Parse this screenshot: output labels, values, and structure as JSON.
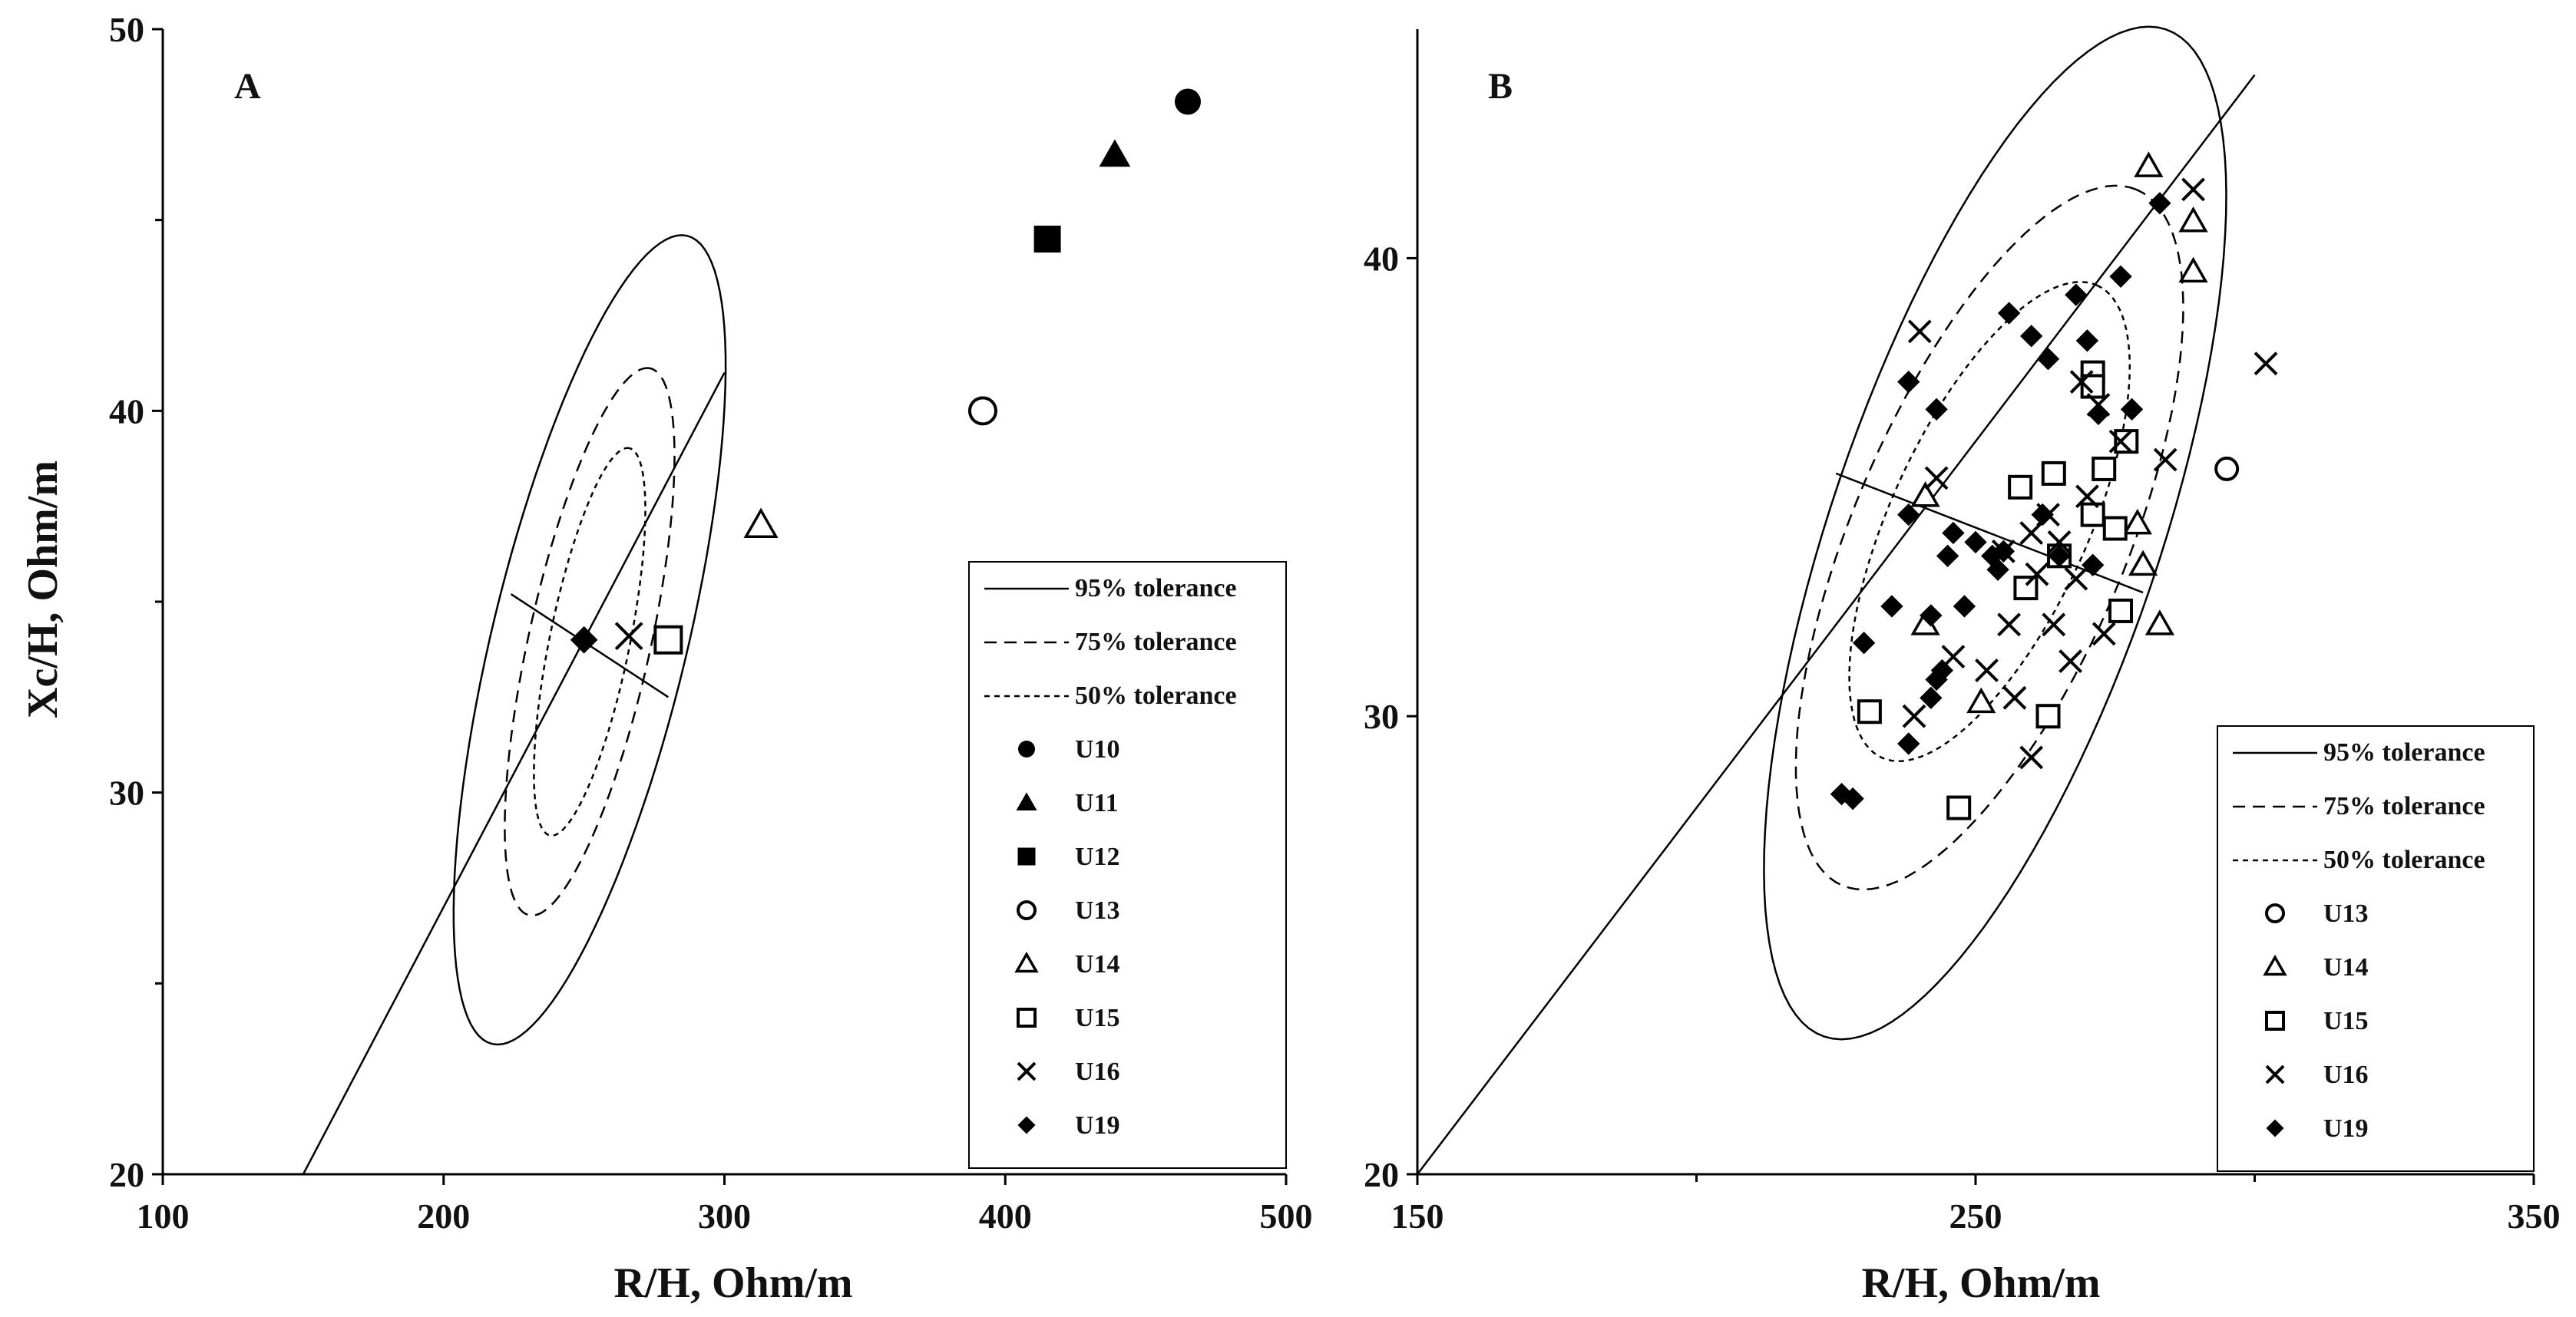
{
  "chart_data": [
    {
      "type": "scatter",
      "panel_label": "A",
      "xlabel": "R/H, Ohm/m",
      "ylabel": "Xc/H, Ohm/m",
      "xlim": [
        100,
        500
      ],
      "ylim": [
        20,
        50
      ],
      "x_ticks": [
        100,
        200,
        300,
        400,
        500
      ],
      "y_ticks": [
        20,
        30,
        40,
        50
      ],
      "legend_position": "bottom-right",
      "ellipses": [
        {
          "name": "95% tolerance",
          "style": "solid",
          "center": [
            252,
            34
          ],
          "x_extent": [
            196,
            308
          ],
          "y_extent": [
            23.8,
            44.2
          ],
          "axis_line": [
            [
              150,
              20
            ],
            [
              300,
              41
            ]
          ],
          "minor_axis": [
            [
              224,
              35.2
            ],
            [
              280,
              32.5
            ]
          ]
        },
        {
          "name": "75% tolerance",
          "style": "dashed",
          "center": [
            252,
            34
          ],
          "x_extent": [
            217,
            287
          ],
          "y_extent": [
            27,
            40.9
          ]
        },
        {
          "name": "50% tolerance",
          "style": "dotted",
          "center": [
            252,
            34
          ],
          "x_extent": [
            229,
            275
          ],
          "y_extent": [
            29,
            38.9
          ]
        }
      ],
      "series": [
        {
          "name": "U10",
          "marker": "circle-filled",
          "points": [
            [
              465,
              48.1
            ]
          ]
        },
        {
          "name": "U11",
          "marker": "triangle-filled",
          "points": [
            [
              439,
              46.7
            ]
          ]
        },
        {
          "name": "U12",
          "marker": "square-filled",
          "points": [
            [
              415,
              44.5
            ]
          ]
        },
        {
          "name": "U13",
          "marker": "circle-open",
          "points": [
            [
              392,
              40
            ]
          ]
        },
        {
          "name": "U14",
          "marker": "triangle-open",
          "points": [
            [
              313,
              37
            ]
          ]
        },
        {
          "name": "U15",
          "marker": "square-open",
          "points": [
            [
              280,
              34
            ]
          ]
        },
        {
          "name": "U16",
          "marker": "x",
          "points": [
            [
              266,
              34.1
            ]
          ]
        },
        {
          "name": "U19",
          "marker": "diamond-filled",
          "points": [
            [
              250,
              34
            ]
          ]
        }
      ]
    },
    {
      "type": "scatter",
      "panel_label": "B",
      "xlabel": "R/H, Ohm/m",
      "ylabel": "",
      "xlim": [
        150,
        350
      ],
      "ylim": [
        20,
        45
      ],
      "x_ticks": [
        150,
        250,
        350
      ],
      "y_ticks": [
        20,
        30,
        40
      ],
      "legend_position": "bottom-right",
      "ellipses": [
        {
          "name": "95% tolerance",
          "style": "solid",
          "center": [
            253,
            33.8
          ],
          "x_extent": [
            206,
            301
          ],
          "y_extent": [
            23.8,
            44.2
          ],
          "axis_line": [
            [
              150,
              20
            ],
            [
              300,
              44
            ]
          ],
          "minor_axis": [
            [
              225,
              35.3
            ],
            [
              280,
              32.7
            ]
          ]
        },
        {
          "name": "75% tolerance",
          "style": "dashed",
          "center": [
            253,
            33.8
          ],
          "x_extent": [
            213,
            292
          ],
          "y_extent": [
            27.1,
            40.7
          ]
        },
        {
          "name": "50% tolerance",
          "style": "dotted",
          "center": [
            253,
            33.8
          ],
          "x_extent": [
            224,
            281
          ],
          "y_extent": [
            29.7,
            38.8
          ]
        }
      ],
      "series": [
        {
          "name": "U13",
          "marker": "circle-open",
          "points": [
            [
              295,
              35.4
            ]
          ]
        },
        {
          "name": "U14",
          "marker": "triangle-open",
          "points": [
            [
              281,
              42
            ],
            [
              289,
              40.8
            ],
            [
              289,
              39.7
            ],
            [
              241,
              34.8
            ],
            [
              279,
              34.2
            ],
            [
              241,
              32
            ],
            [
              251,
              30.3
            ],
            [
              280,
              33.3
            ],
            [
              283,
              32
            ]
          ]
        },
        {
          "name": "U15",
          "marker": "square-open",
          "points": [
            [
              231,
              30.1
            ],
            [
              263,
              30
            ],
            [
              247,
              28
            ],
            [
              258,
              35
            ],
            [
              264,
              35.3
            ],
            [
              271,
              37.5
            ],
            [
              271,
              37.2
            ],
            [
              277,
              36
            ],
            [
              271,
              34.4
            ],
            [
              275,
              34.1
            ],
            [
              273,
              35.4
            ],
            [
              265,
              33.5
            ],
            [
              259,
              32.8
            ],
            [
              276,
              32.3
            ]
          ]
        },
        {
          "name": "U16",
          "marker": "x",
          "points": [
            [
              289,
              41.5
            ],
            [
              302,
              37.7
            ],
            [
              240,
              38.4
            ],
            [
              243,
              35.2
            ],
            [
              269,
              37.3
            ],
            [
              272,
              36.8
            ],
            [
              276,
              36
            ],
            [
              284,
              35.6
            ],
            [
              263,
              34.4
            ],
            [
              270,
              34.8
            ],
            [
              255,
              33.6
            ],
            [
              260,
              34
            ],
            [
              265,
              33.8
            ],
            [
              261,
              33.1
            ],
            [
              264,
              32
            ],
            [
              256,
              32
            ],
            [
              273,
              31.8
            ],
            [
              267,
              31.2
            ],
            [
              252,
              31
            ],
            [
              257,
              30.4
            ],
            [
              246,
              31.3
            ],
            [
              239,
              30
            ],
            [
              260,
              29.1
            ],
            [
              268,
              33
            ]
          ]
        },
        {
          "name": "U19",
          "marker": "diamond-filled",
          "points": [
            [
              230,
              31.6
            ],
            [
              238,
              29.4
            ],
            [
              226,
              28.3
            ],
            [
              228,
              28.2
            ],
            [
              242,
              32.2
            ],
            [
              245,
              33.5
            ],
            [
              238,
              34.4
            ],
            [
              246,
              34
            ],
            [
              250,
              33.8
            ],
            [
              255,
              33.6
            ],
            [
              254,
              33.2
            ],
            [
              262,
              34.4
            ],
            [
              265,
              33.5
            ],
            [
              271,
              33.3
            ],
            [
              253,
              33.5
            ],
            [
              238,
              37.3
            ],
            [
              243,
              36.7
            ],
            [
              256,
              38.8
            ],
            [
              260,
              38.3
            ],
            [
              263,
              37.8
            ],
            [
              268,
              39.2
            ],
            [
              276,
              39.6
            ],
            [
              270,
              38.2
            ],
            [
              272,
              36.6
            ],
            [
              278,
              36.7
            ],
            [
              283,
              41.2
            ],
            [
              248,
              32.4
            ],
            [
              235,
              32.4
            ],
            [
              244,
              31
            ],
            [
              243,
              30.8
            ],
            [
              242,
              30.4
            ]
          ]
        }
      ]
    }
  ]
}
